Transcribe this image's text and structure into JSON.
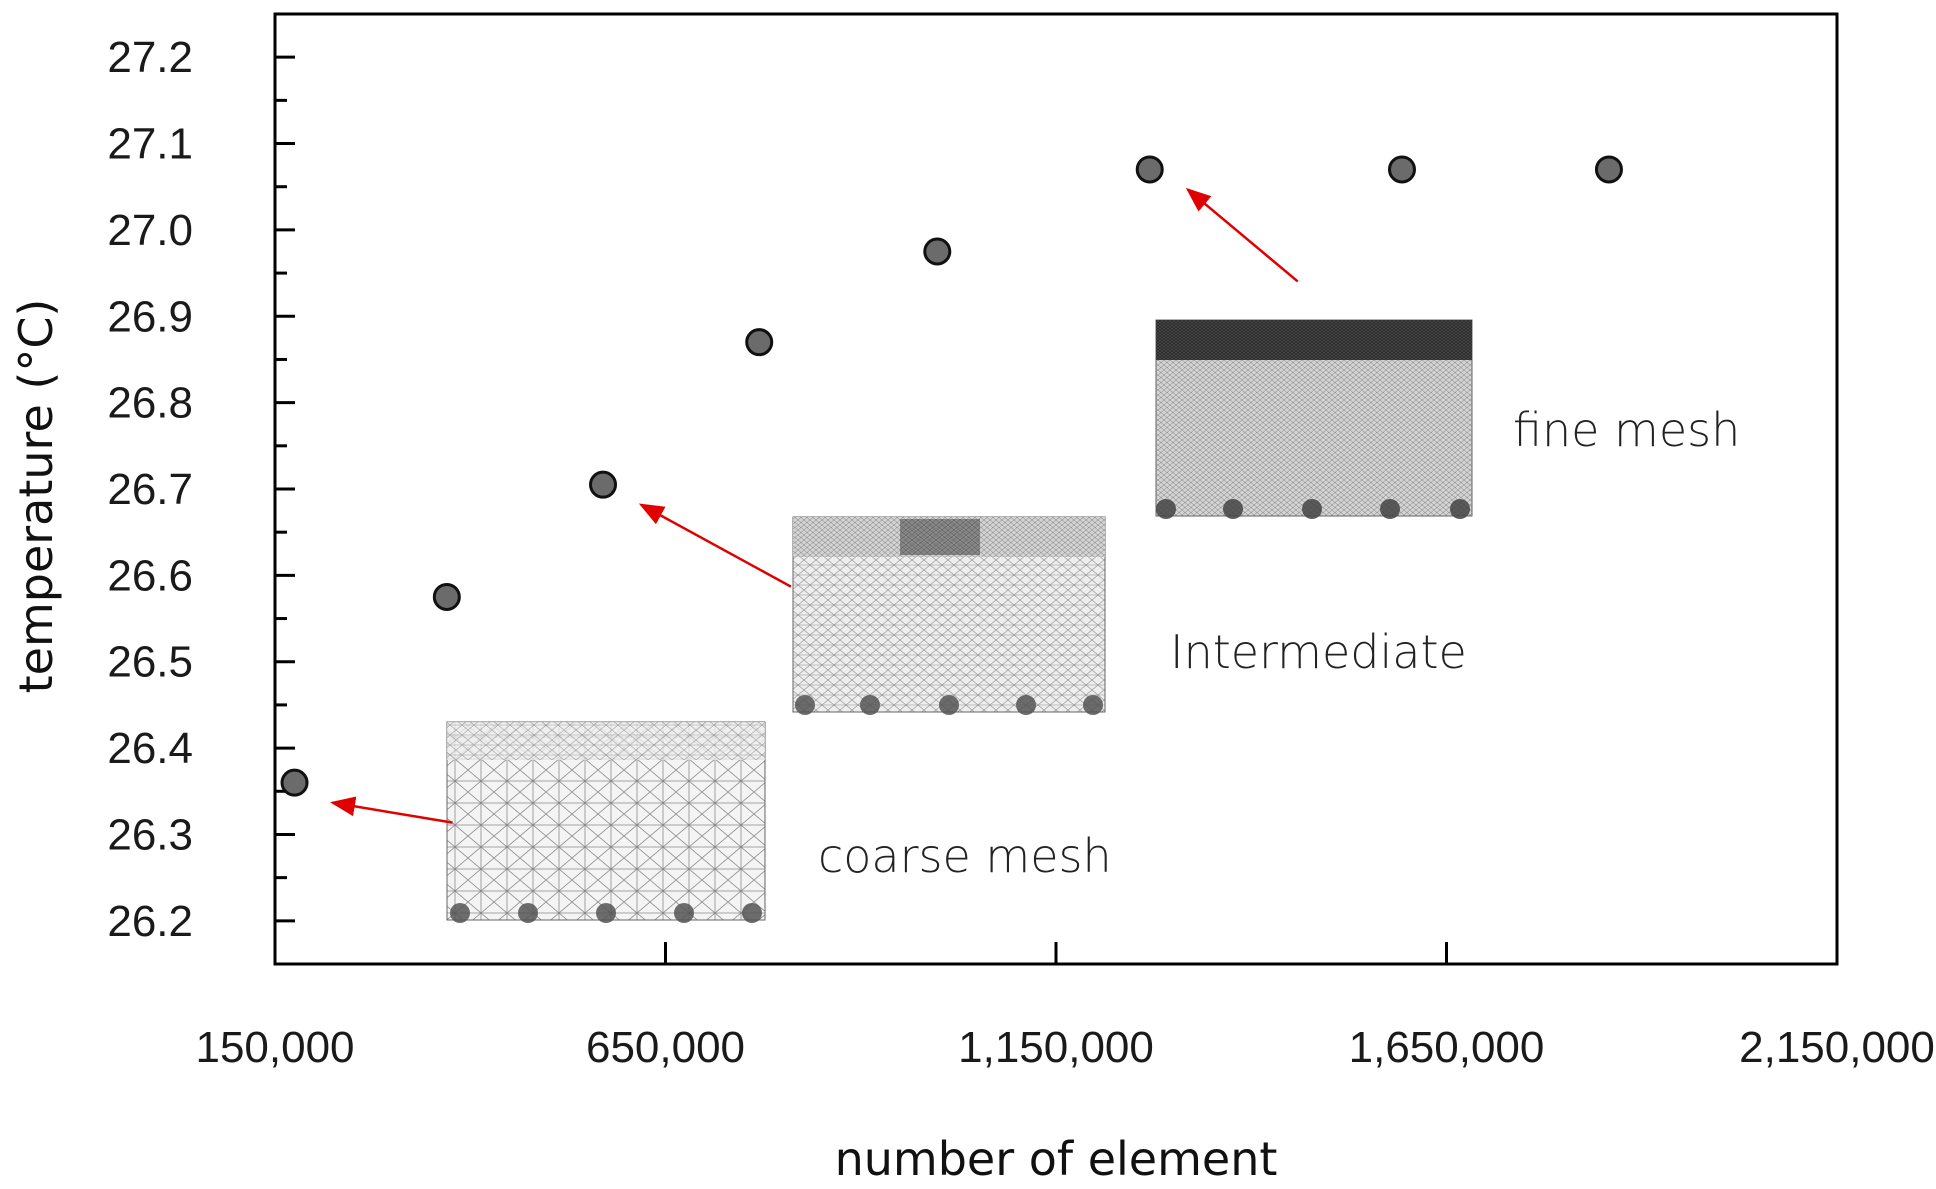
{
  "chart_data": {
    "type": "scatter",
    "xlabel": "number of element",
    "ylabel": "temperature (°C)",
    "xlim": [
      150000,
      2150000
    ],
    "ylim": [
      26.15,
      27.25
    ],
    "x_ticks": [
      150000,
      650000,
      1150000,
      1650000,
      2150000
    ],
    "x_tick_labels": [
      "150,000",
      "650,000",
      "1,150,000",
      "1,650,000",
      "2,150,000"
    ],
    "y_ticks": [
      26.2,
      26.3,
      26.4,
      26.5,
      26.6,
      26.7,
      26.8,
      26.9,
      27.0,
      27.1,
      27.2
    ],
    "y_tick_labels": [
      "26.2",
      "26.3",
      "26.4",
      "26.5",
      "26.6",
      "26.7",
      "26.8",
      "26.9",
      "27.0",
      "27.1",
      "27.2"
    ],
    "grid": false,
    "points": [
      {
        "x": 175000,
        "y": 26.36
      },
      {
        "x": 370000,
        "y": 26.575
      },
      {
        "x": 570000,
        "y": 26.705
      },
      {
        "x": 770000,
        "y": 26.87
      },
      {
        "x": 998000,
        "y": 26.975
      },
      {
        "x": 1270000,
        "y": 27.07
      },
      {
        "x": 1593000,
        "y": 27.07
      },
      {
        "x": 1858000,
        "y": 27.07
      }
    ],
    "marker_color": "#6b6b6b",
    "marker_edge_color": "#111111",
    "arrow_color": "#e00000",
    "annotations": [
      {
        "label": "coarse mesh",
        "points_to": 0
      },
      {
        "label": "Intermediate",
        "points_to": 2
      },
      {
        "label": "fine mesh",
        "points_to": 5
      }
    ]
  }
}
